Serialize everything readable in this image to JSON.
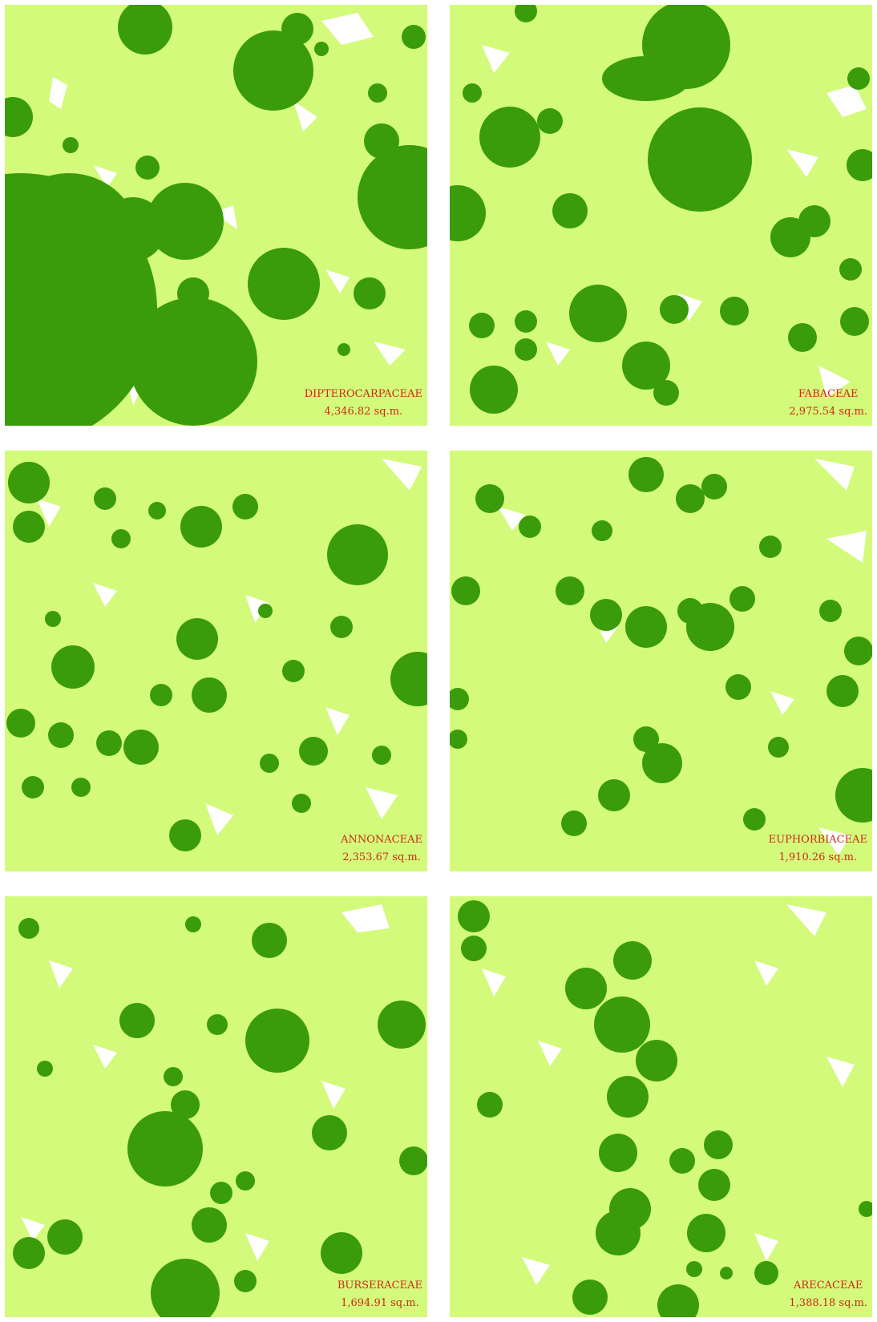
{
  "colors": {
    "background": "#ffffff",
    "canopy": "#d3fa7a",
    "crown": "#3a9c0a",
    "label": "#cc2a16"
  },
  "panels": [
    {
      "family": "DIPTEROCARPACEAE",
      "area": "4,346.82 sq.m."
    },
    {
      "family": "FABACEAE",
      "area": "2,975.54 sq.m."
    },
    {
      "family": "ANNONACEAE",
      "area": "2,353.67 sq.m."
    },
    {
      "family": "EUPHORBIACEAE",
      "area": "1,910.26 sq.m."
    },
    {
      "family": "BURSERACEAE",
      "area": "1,694.91 sq.m."
    },
    {
      "family": "ARECACEAE",
      "area": "1,388.18 sq.m."
    }
  ]
}
